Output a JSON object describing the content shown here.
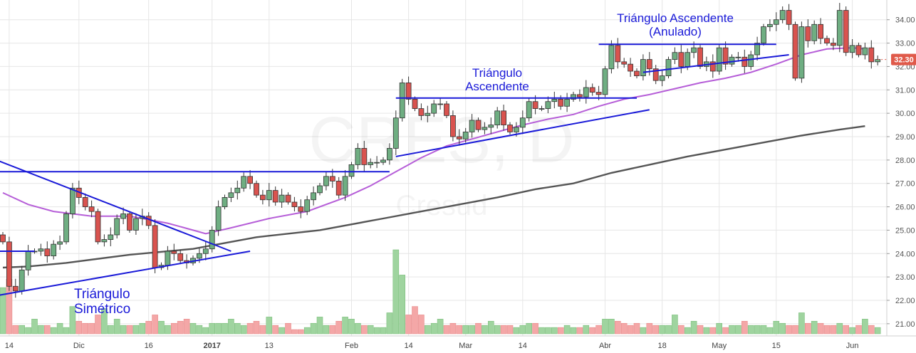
{
  "chart_data": {
    "type": "candlestick",
    "watermark": {
      "symbol": "CRES, D",
      "name": "Cresud"
    },
    "price_axis": {
      "ticks": [
        "21.00",
        "22.00",
        "23.00",
        "24.00",
        "25.00",
        "26.00",
        "27.00",
        "28.00",
        "29.00",
        "30.00",
        "31.00",
        "32.00",
        "33.00",
        "34.00"
      ],
      "ylim": [
        20.6,
        34.6
      ],
      "last_price": "32.30",
      "last_color": "#e05a4a"
    },
    "time_axis": {
      "labels": [
        {
          "text": "14",
          "i": 1
        },
        {
          "text": "Dic",
          "i": 12
        },
        {
          "text": "16",
          "i": 23
        },
        {
          "text": "2017",
          "i": 33,
          "bold": true
        },
        {
          "text": "13",
          "i": 42
        },
        {
          "text": "Feb",
          "i": 55
        },
        {
          "text": "14",
          "i": 64
        },
        {
          "text": "Mar",
          "i": 73
        },
        {
          "text": "14",
          "i": 82
        },
        {
          "text": "Abr",
          "i": 95
        },
        {
          "text": "18",
          "i": 104
        },
        {
          "text": "May",
          "i": 113
        },
        {
          "text": "15",
          "i": 122
        },
        {
          "text": "Jun",
          "i": 134
        }
      ]
    },
    "colors": {
      "up": "#6fae82",
      "down": "#d9534f",
      "line": "#1a1ad8",
      "ma_short": "#b65ed8",
      "ma_long": "#555555",
      "vol_up": "#9fd49f",
      "vol_down": "#f4a7a7",
      "grid": "#e6e6e6"
    },
    "closes": [
      24.5,
      22.6,
      22.4,
      23.3,
      24.1,
      24.1,
      24.2,
      23.9,
      24.4,
      24.5,
      25.7,
      26.8,
      26.4,
      26.0,
      25.8,
      24.5,
      24.6,
      24.8,
      25.5,
      25.7,
      25.0,
      25.5,
      25.6,
      25.2,
      23.4,
      23.5,
      24.1,
      24.0,
      23.7,
      23.6,
      23.8,
      24.0,
      24.2,
      25.0,
      26.0,
      26.4,
      26.6,
      26.8,
      27.3,
      27.0,
      26.5,
      26.3,
      26.7,
      26.2,
      26.5,
      26.2,
      26.0,
      25.8,
      26.3,
      26.6,
      26.9,
      27.3,
      27.1,
      26.5,
      27.3,
      27.8,
      28.5,
      27.8,
      27.9,
      27.9,
      28.0,
      28.5,
      29.8,
      31.3,
      30.6,
      30.2,
      29.9,
      30.0,
      30.4,
      30.4,
      29.9,
      29.0,
      28.9,
      29.2,
      29.7,
      29.3,
      29.4,
      29.5,
      30.1,
      29.5,
      29.2,
      29.4,
      29.8,
      30.5,
      30.2,
      30.2,
      30.5,
      30.6,
      30.3,
      30.6,
      30.8,
      30.7,
      31.1,
      30.9,
      30.8,
      31.9,
      32.9,
      32.2,
      32.1,
      31.8,
      31.6,
      32.3,
      31.9,
      31.4,
      31.6,
      32.3,
      32.6,
      32.0,
      32.6,
      32.8,
      32.0,
      32.2,
      31.8,
      32.8,
      32.1,
      32.4,
      32.4,
      32.0,
      32.5,
      33.0,
      33.7,
      33.8,
      34.0,
      34.4,
      33.8,
      31.5,
      33.7,
      33.1,
      33.8,
      33.2,
      33.0,
      32.9,
      34.4,
      32.6,
      32.9,
      32.5,
      32.8,
      32.2,
      32.3
    ],
    "volume_scale": {
      "max": 4.0
    },
    "volumes": [
      2.2,
      2.6,
      0.4,
      0.4,
      0.3,
      0.7,
      0.4,
      0.4,
      0.3,
      0.5,
      0.3,
      1.3,
      0.6,
      0.5,
      0.5,
      0.9,
      1.2,
      0.4,
      0.7,
      0.4,
      0.4,
      0.4,
      0.5,
      0.6,
      0.9,
      0.6,
      0.4,
      0.5,
      0.6,
      0.7,
      0.5,
      0.4,
      0.3,
      0.5,
      0.5,
      0.5,
      0.7,
      0.5,
      0.4,
      0.5,
      0.6,
      0.4,
      0.8,
      0.4,
      0.3,
      0.5,
      0.2,
      0.2,
      0.3,
      0.5,
      0.8,
      0.4,
      0.4,
      0.6,
      0.8,
      0.7,
      0.5,
      0.4,
      0.4,
      0.3,
      0.3,
      1.0,
      4.0,
      2.8,
      0.9,
      1.3,
      0.9,
      0.4,
      0.5,
      0.7,
      0.4,
      0.5,
      0.4,
      0.4,
      0.4,
      0.5,
      0.4,
      0.6,
      0.4,
      0.4,
      0.4,
      0.3,
      0.4,
      0.5,
      0.5,
      0.3,
      0.3,
      0.3,
      0.3,
      0.4,
      0.3,
      0.3,
      0.4,
      0.3,
      0.4,
      0.7,
      0.7,
      0.6,
      0.5,
      0.4,
      0.5,
      0.3,
      0.5,
      0.4,
      0.4,
      0.4,
      0.9,
      0.4,
      0.3,
      0.6,
      0.4,
      0.3,
      0.3,
      0.5,
      0.3,
      0.4,
      0.4,
      0.6,
      0.4,
      0.4,
      0.4,
      0.3,
      0.6,
      0.5,
      0.4,
      0.4,
      1.0,
      0.5,
      0.6,
      0.5,
      0.4,
      0.4,
      0.5,
      0.4,
      0.3,
      0.4,
      0.7,
      0.4,
      0.3
    ],
    "ma_short_points": [
      [
        0,
        26.6
      ],
      [
        4,
        26.1
      ],
      [
        8,
        25.8
      ],
      [
        14,
        25.6
      ],
      [
        20,
        25.6
      ],
      [
        26,
        25.3
      ],
      [
        30,
        25.0
      ],
      [
        32,
        24.85
      ],
      [
        36,
        25.1
      ],
      [
        42,
        25.5
      ],
      [
        48,
        25.8
      ],
      [
        54,
        26.4
      ],
      [
        58,
        26.9
      ],
      [
        62,
        27.5
      ],
      [
        66,
        28.1
      ],
      [
        70,
        28.6
      ],
      [
        74,
        28.9
      ],
      [
        78,
        29.2
      ],
      [
        82,
        29.5
      ],
      [
        86,
        29.75
      ],
      [
        90,
        29.95
      ],
      [
        94,
        30.3
      ],
      [
        98,
        30.6
      ],
      [
        102,
        30.8
      ],
      [
        106,
        31.05
      ],
      [
        110,
        31.3
      ],
      [
        114,
        31.5
      ],
      [
        118,
        31.75
      ],
      [
        122,
        32.1
      ],
      [
        126,
        32.5
      ],
      [
        130,
        32.75
      ],
      [
        134,
        32.8
      ],
      [
        136,
        32.75
      ]
    ],
    "ma_long_points": [
      [
        0,
        23.4
      ],
      [
        4,
        23.45
      ],
      [
        10,
        23.6
      ],
      [
        20,
        23.95
      ],
      [
        30,
        24.2
      ],
      [
        40,
        24.7
      ],
      [
        50,
        25.0
      ],
      [
        60,
        25.5
      ],
      [
        66,
        25.8
      ],
      [
        72,
        26.1
      ],
      [
        78,
        26.4
      ],
      [
        84,
        26.75
      ],
      [
        90,
        27.0
      ],
      [
        96,
        27.45
      ],
      [
        102,
        27.8
      ],
      [
        108,
        28.15
      ],
      [
        114,
        28.45
      ],
      [
        120,
        28.75
      ],
      [
        126,
        29.05
      ],
      [
        132,
        29.3
      ],
      [
        136,
        29.45
      ]
    ],
    "trendlines": [
      {
        "from": [
          -1,
          27.5
        ],
        "to": [
          61,
          27.5
        ]
      },
      {
        "from": [
          -1,
          24.1
        ],
        "to": [
          5,
          24.1
        ]
      },
      {
        "from": [
          -1,
          28.0
        ],
        "to": [
          36,
          24.1
        ]
      },
      {
        "from": [
          -1,
          22.2
        ],
        "to": [
          39,
          24.1
        ]
      },
      {
        "from": [
          62,
          30.65
        ],
        "to": [
          100,
          30.65
        ]
      },
      {
        "from": [
          62,
          28.15
        ],
        "to": [
          102,
          30.15
        ]
      },
      {
        "from": [
          94,
          32.95
        ],
        "to": [
          122,
          32.95
        ]
      },
      {
        "from": [
          101,
          31.75
        ],
        "to": [
          124,
          32.5
        ]
      }
    ],
    "annotations": [
      {
        "id": "sym",
        "lines": [
          "Triángulo",
          "Simétrico"
        ],
        "x": 104,
        "y": 419,
        "size": 19,
        "anchor": "start"
      },
      {
        "id": "asc",
        "lines": [
          "Triángulo",
          "Ascendente"
        ],
        "x": 698,
        "y": 108,
        "size": 17,
        "anchor": "middle"
      },
      {
        "id": "asc2",
        "lines": [
          "Triángulo Ascendente",
          "(Anulado)"
        ],
        "x": 948,
        "y": 31,
        "size": 17,
        "anchor": "middle"
      }
    ]
  }
}
